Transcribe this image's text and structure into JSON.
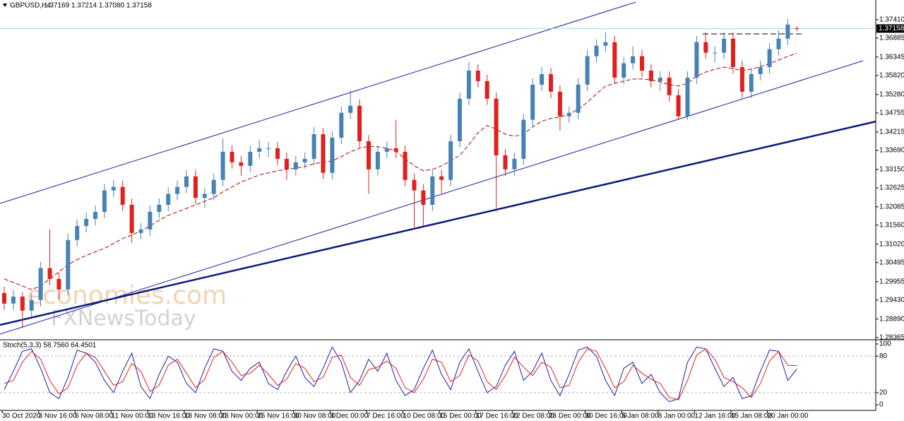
{
  "chart_data": [
    {
      "type": "candlestick",
      "title": "GBPUSD,H4",
      "subtitle": "1.37169 1.37214 1.37080 1.37158",
      "watermarks": [
        "economies.com",
        "FXNewsToday"
      ],
      "up_color": "#4682b4",
      "down_color": "#e0201c",
      "ylim": [
        1.2832,
        1.3797
      ],
      "yticks": [
        {
          "value": 1.3741,
          "label": "1.37410"
        },
        1.36885,
        1.36345,
        {
          "value": 1.3582,
          "label": "1.35820"
        },
        {
          "value": 1.3528,
          "label": "1.35280"
        },
        1.34755,
        1.34215,
        {
          "value": 1.3369,
          "label": "1.33690"
        },
        {
          "value": 1.3315,
          "label": "1.33150"
        },
        1.32625,
        1.32085,
        {
          "value": 1.3156,
          "label": "1.31560"
        },
        {
          "value": 1.3102,
          "label": "1.31020"
        },
        1.30495,
        1.29955,
        {
          "value": 1.2943,
          "label": "1.29430"
        },
        {
          "value": 1.2889,
          "label": "1.28890"
        },
        1.28365
      ],
      "current_price": {
        "value": 1.37158,
        "label": "1.37158"
      },
      "categories": [
        "30 Oct 2020",
        null,
        null,
        null,
        "3 Nov 16:00",
        null,
        null,
        null,
        "6 Nov 08:00",
        null,
        null,
        null,
        "11 Nov 00:00",
        null,
        null,
        null,
        "13 Nov 16:00",
        null,
        null,
        null,
        "18 Nov 08:00",
        null,
        null,
        null,
        "23 Nov 00:00",
        null,
        null,
        null,
        "25 Nov 16:00",
        null,
        null,
        null,
        "30 Nov 08:00",
        null,
        null,
        null,
        "3 Dec 00:00",
        null,
        null,
        null,
        "7 Dec 16:00",
        null,
        null,
        null,
        "10 Dec 08:00",
        null,
        null,
        null,
        "15 Dec 00:00",
        null,
        null,
        null,
        "17 Dec 16:00",
        null,
        null,
        null,
        "22 Dec 08:00",
        null,
        null,
        null,
        "28 Dec 00:00",
        null,
        null,
        null,
        "30 Dec 16:00",
        null,
        null,
        null,
        "5 Jan 08:00",
        null,
        null,
        null,
        "8 Jan 00:00",
        null,
        null,
        null,
        "12 Jan 16:00",
        null,
        null,
        null,
        "15 Jan 08:00",
        null,
        null,
        null,
        "20 Jan 00:00",
        null,
        null,
        null
      ],
      "candles": [
        [
          1.2963,
          1.2981,
          1.2915,
          1.2933
        ],
        [
          1.2933,
          1.2971,
          1.2915,
          1.2953
        ],
        [
          1.2953,
          1.2965,
          1.2863,
          1.2913
        ],
        [
          1.2913,
          1.2961,
          1.2895,
          1.2943
        ],
        [
          1.2943,
          1.3052,
          1.2925,
          1.3034
        ],
        [
          1.3034,
          1.3144,
          1.2985,
          1.3003
        ],
        [
          1.3003,
          1.3021,
          1.2945,
          1.2973
        ],
        [
          1.2973,
          1.3132,
          1.2955,
          1.3114
        ],
        [
          1.3114,
          1.3172,
          1.3096,
          1.3154
        ],
        [
          1.3154,
          1.3192,
          1.3136,
          1.3174
        ],
        [
          1.3174,
          1.3212,
          1.3156,
          1.3194
        ],
        [
          1.3194,
          1.3273,
          1.3176,
          1.3255
        ],
        [
          1.3255,
          1.3285,
          1.3237,
          1.3265
        ],
        [
          1.3265,
          1.3283,
          1.3196,
          1.3214
        ],
        [
          1.3214,
          1.3232,
          1.3106,
          1.3134
        ],
        [
          1.3134,
          1.3162,
          1.3116,
          1.3144
        ],
        [
          1.3144,
          1.3212,
          1.3126,
          1.3194
        ],
        [
          1.3194,
          1.3232,
          1.3176,
          1.3214
        ],
        [
          1.3214,
          1.3263,
          1.3196,
          1.3245
        ],
        [
          1.3245,
          1.3283,
          1.3227,
          1.3265
        ],
        [
          1.3265,
          1.3313,
          1.3247,
          1.3295
        ],
        [
          1.3295,
          1.3313,
          1.3216,
          1.3234
        ],
        [
          1.3234,
          1.3263,
          1.3206,
          1.3245
        ],
        [
          1.3245,
          1.3303,
          1.3227,
          1.3285
        ],
        [
          1.3285,
          1.3403,
          1.3267,
          1.3365
        ],
        [
          1.3365,
          1.3383,
          1.3317,
          1.3335
        ],
        [
          1.3335,
          1.3353,
          1.3297,
          1.3325
        ],
        [
          1.3325,
          1.3383,
          1.3307,
          1.3365
        ],
        [
          1.3365,
          1.3398,
          1.3347,
          1.3375
        ],
        [
          1.3375,
          1.3393,
          1.3351,
          1.3375
        ],
        [
          1.3375,
          1.3393,
          1.3327,
          1.3345
        ],
        [
          1.3345,
          1.3363,
          1.3285,
          1.3315
        ],
        [
          1.3315,
          1.3353,
          1.3297,
          1.3335
        ],
        [
          1.3335,
          1.3363,
          1.3317,
          1.3345
        ],
        [
          1.3345,
          1.3436,
          1.3327,
          1.3415
        ],
        [
          1.3415,
          1.3433,
          1.3287,
          1.3305
        ],
        [
          1.3305,
          1.3423,
          1.3287,
          1.3405
        ],
        [
          1.3405,
          1.3494,
          1.3387,
          1.3476
        ],
        [
          1.3476,
          1.354,
          1.3458,
          1.3496
        ],
        [
          1.3496,
          1.3514,
          1.3377,
          1.3395
        ],
        [
          1.3395,
          1.3413,
          1.3245,
          1.3315
        ],
        [
          1.3315,
          1.3383,
          1.3297,
          1.3365
        ],
        [
          1.3365,
          1.3393,
          1.3347,
          1.3375
        ],
        [
          1.3375,
          1.3456,
          1.3347,
          1.3365
        ],
        [
          1.3365,
          1.3383,
          1.3267,
          1.3285
        ],
        [
          1.3285,
          1.3303,
          1.3144,
          1.3255
        ],
        [
          1.3255,
          1.3273,
          1.3154,
          1.3214
        ],
        [
          1.3214,
          1.3313,
          1.3196,
          1.3295
        ],
        [
          1.3295,
          1.3313,
          1.3247,
          1.3285
        ],
        [
          1.3285,
          1.3413,
          1.3267,
          1.3395
        ],
        [
          1.3395,
          1.3534,
          1.3377,
          1.3516
        ],
        [
          1.3516,
          1.362,
          1.3498,
          1.3596
        ],
        [
          1.3596,
          1.3614,
          1.3548,
          1.3566
        ],
        [
          1.3566,
          1.3584,
          1.3498,
          1.3516
        ],
        [
          1.3516,
          1.3534,
          1.3194,
          1.3355
        ],
        [
          1.3355,
          1.3373,
          1.3297,
          1.3315
        ],
        [
          1.3315,
          1.3363,
          1.3297,
          1.3345
        ],
        [
          1.3345,
          1.3474,
          1.3327,
          1.3456
        ],
        [
          1.3456,
          1.3574,
          1.3438,
          1.3556
        ],
        [
          1.3556,
          1.3606,
          1.3538,
          1.3586
        ],
        [
          1.3586,
          1.3604,
          1.3518,
          1.3536
        ],
        [
          1.3536,
          1.3554,
          1.3426,
          1.3466
        ],
        [
          1.3466,
          1.3494,
          1.3448,
          1.3476
        ],
        [
          1.3476,
          1.3574,
          1.3458,
          1.3556
        ],
        [
          1.3556,
          1.3655,
          1.3538,
          1.3637
        ],
        [
          1.3637,
          1.3685,
          1.3619,
          1.3667
        ],
        [
          1.3667,
          1.3705,
          1.3649,
          1.3677
        ],
        [
          1.3677,
          1.3695,
          1.3558,
          1.3576
        ],
        [
          1.3576,
          1.3635,
          1.3558,
          1.3617
        ],
        [
          1.3617,
          1.3665,
          1.3599,
          1.3637
        ],
        [
          1.3637,
          1.3655,
          1.3578,
          1.3596
        ],
        [
          1.3596,
          1.3614,
          1.3548,
          1.3566
        ],
        [
          1.3566,
          1.3594,
          1.3538,
          1.3576
        ],
        [
          1.3576,
          1.3594,
          1.3508,
          1.3526
        ],
        [
          1.3526,
          1.3544,
          1.3456,
          1.3466
        ],
        [
          1.3466,
          1.3594,
          1.3456,
          1.3576
        ],
        [
          1.3576,
          1.3695,
          1.3558,
          1.3677
        ],
        [
          1.3677,
          1.3705,
          1.3629,
          1.3647
        ],
        [
          1.3647,
          1.3665,
          1.3619,
          1.3647
        ],
        [
          1.3647,
          1.3705,
          1.3629,
          1.3687
        ],
        [
          1.3687,
          1.3705,
          1.3588,
          1.3606
        ],
        [
          1.3606,
          1.3624,
          1.3518,
          1.3536
        ],
        [
          1.3536,
          1.3604,
          1.3518,
          1.3586
        ],
        [
          1.3586,
          1.3624,
          1.3568,
          1.3606
        ],
        [
          1.3606,
          1.3675,
          1.3588,
          1.3657
        ],
        [
          1.3657,
          1.371,
          1.3639,
          1.3687
        ],
        [
          1.3687,
          1.3743,
          1.3669,
          1.3727
        ],
        [
          1.37169,
          1.37214,
          1.3708,
          1.37158
        ]
      ],
      "ma": {
        "color": "#b00000",
        "values": [
          1.3003,
          1.2993,
          1.2983,
          1.2973,
          1.2983,
          1.3003,
          1.3023,
          1.3044,
          1.3058,
          1.307,
          1.308,
          1.309,
          1.3104,
          1.3118,
          1.3128,
          1.314,
          1.3154,
          1.317,
          1.3184,
          1.3194,
          1.3204,
          1.3214,
          1.3224,
          1.3234,
          1.3251,
          1.3265,
          1.3279,
          1.3289,
          1.3299,
          1.3305,
          1.3311,
          1.3315,
          1.3319,
          1.3323,
          1.3331,
          1.3335,
          1.3339,
          1.3351,
          1.3365,
          1.3375,
          1.3381,
          1.3379,
          1.3375,
          1.3367,
          1.3345,
          1.3325,
          1.3311,
          1.3315,
          1.3325,
          1.3339,
          1.3355,
          1.3385,
          1.3419,
          1.344,
          1.3429,
          1.3415,
          1.3409,
          1.3415,
          1.3436,
          1.3452,
          1.346,
          1.3464,
          1.3472,
          1.3486,
          1.3506,
          1.353,
          1.3552,
          1.356,
          1.3566,
          1.3572,
          1.3572,
          1.357,
          1.3564,
          1.3556,
          1.3552,
          1.356,
          1.358,
          1.3592,
          1.36,
          1.3606,
          1.3602,
          1.3596,
          1.36,
          1.3608,
          1.3616,
          1.3626,
          1.3637,
          1.3645
        ]
      }
    },
    {
      "type": "line",
      "title": "Stoch(5,3,3) 58.7560 64.4501",
      "ylim": [
        -8.1,
        105.8
      ],
      "yticks": [
        100,
        80,
        20,
        0
      ],
      "levels": [
        20,
        80
      ],
      "series": [
        {
          "color": "#1c1ca8",
          "values": [
            25,
            55,
            88,
            92,
            60,
            20,
            10,
            45,
            90,
            85,
            70,
            40,
            20,
            55,
            85,
            30,
            10,
            50,
            80,
            70,
            35,
            20,
            60,
            92,
            88,
            55,
            40,
            60,
            70,
            35,
            25,
            55,
            80,
            45,
            30,
            60,
            95,
            70,
            20,
            40,
            75,
            55,
            85,
            40,
            15,
            25,
            60,
            90,
            50,
            25,
            70,
            92,
            55,
            20,
            30,
            65,
            88,
            40,
            55,
            85,
            40,
            15,
            50,
            90,
            95,
            80,
            40,
            15,
            60,
            70,
            35,
            50,
            20,
            5,
            10,
            70,
            95,
            92,
            60,
            30,
            45,
            10,
            15,
            55,
            90,
            88,
            40,
            58.756
          ]
        },
        {
          "color": "#e02020",
          "values": [
            35,
            40,
            70,
            88,
            75,
            40,
            18,
            28,
            65,
            85,
            78,
            55,
            32,
            38,
            68,
            55,
            22,
            32,
            65,
            75,
            52,
            28,
            42,
            78,
            88,
            70,
            48,
            52,
            65,
            50,
            32,
            42,
            68,
            60,
            38,
            45,
            78,
            82,
            45,
            32,
            58,
            62,
            72,
            60,
            28,
            20,
            42,
            75,
            70,
            38,
            48,
            82,
            72,
            38,
            25,
            48,
            78,
            62,
            48,
            70,
            62,
            28,
            32,
            70,
            92,
            88,
            60,
            28,
            38,
            65,
            52,
            42,
            35,
            12,
            8,
            40,
            82,
            92,
            75,
            45,
            38,
            28,
            12,
            35,
            72,
            88,
            65,
            64.4501
          ]
        }
      ]
    }
  ]
}
